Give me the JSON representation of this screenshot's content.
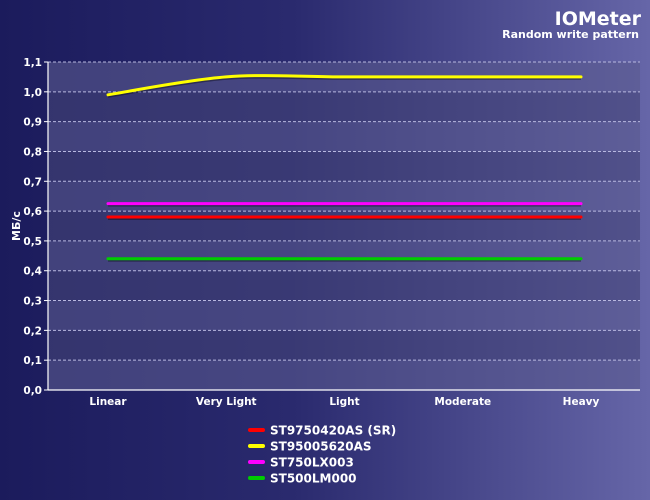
{
  "chart_data": {
    "type": "line",
    "title": "IOMeter",
    "subtitle": "Random write pattern",
    "xlabel": "",
    "ylabel": "МБ/с",
    "categories": [
      "Linear",
      "Very Light",
      "Light",
      "Moderate",
      "Heavy"
    ],
    "ylim": [
      0.0,
      1.1
    ],
    "yticks": [
      "0,0",
      "0,1",
      "0,2",
      "0,3",
      "0,4",
      "0,5",
      "0,6",
      "0,7",
      "0,8",
      "0,9",
      "1,0",
      "1,1"
    ],
    "grid": true,
    "legend_position": "bottom",
    "series": [
      {
        "name": "ST9750420AS (SR)",
        "color": "#ff0000",
        "values": [
          0.58,
          0.58,
          0.58,
          0.58,
          0.58
        ]
      },
      {
        "name": "ST95005620AS",
        "color": "#ffff00",
        "values": [
          0.99,
          1.05,
          1.05,
          1.05,
          1.05
        ]
      },
      {
        "name": "ST750LX003",
        "color": "#ff00ff",
        "values": [
          0.625,
          0.625,
          0.625,
          0.625,
          0.625
        ]
      },
      {
        "name": "ST500LM000",
        "color": "#00cc00",
        "values": [
          0.44,
          0.44,
          0.44,
          0.44,
          0.44
        ]
      }
    ]
  }
}
